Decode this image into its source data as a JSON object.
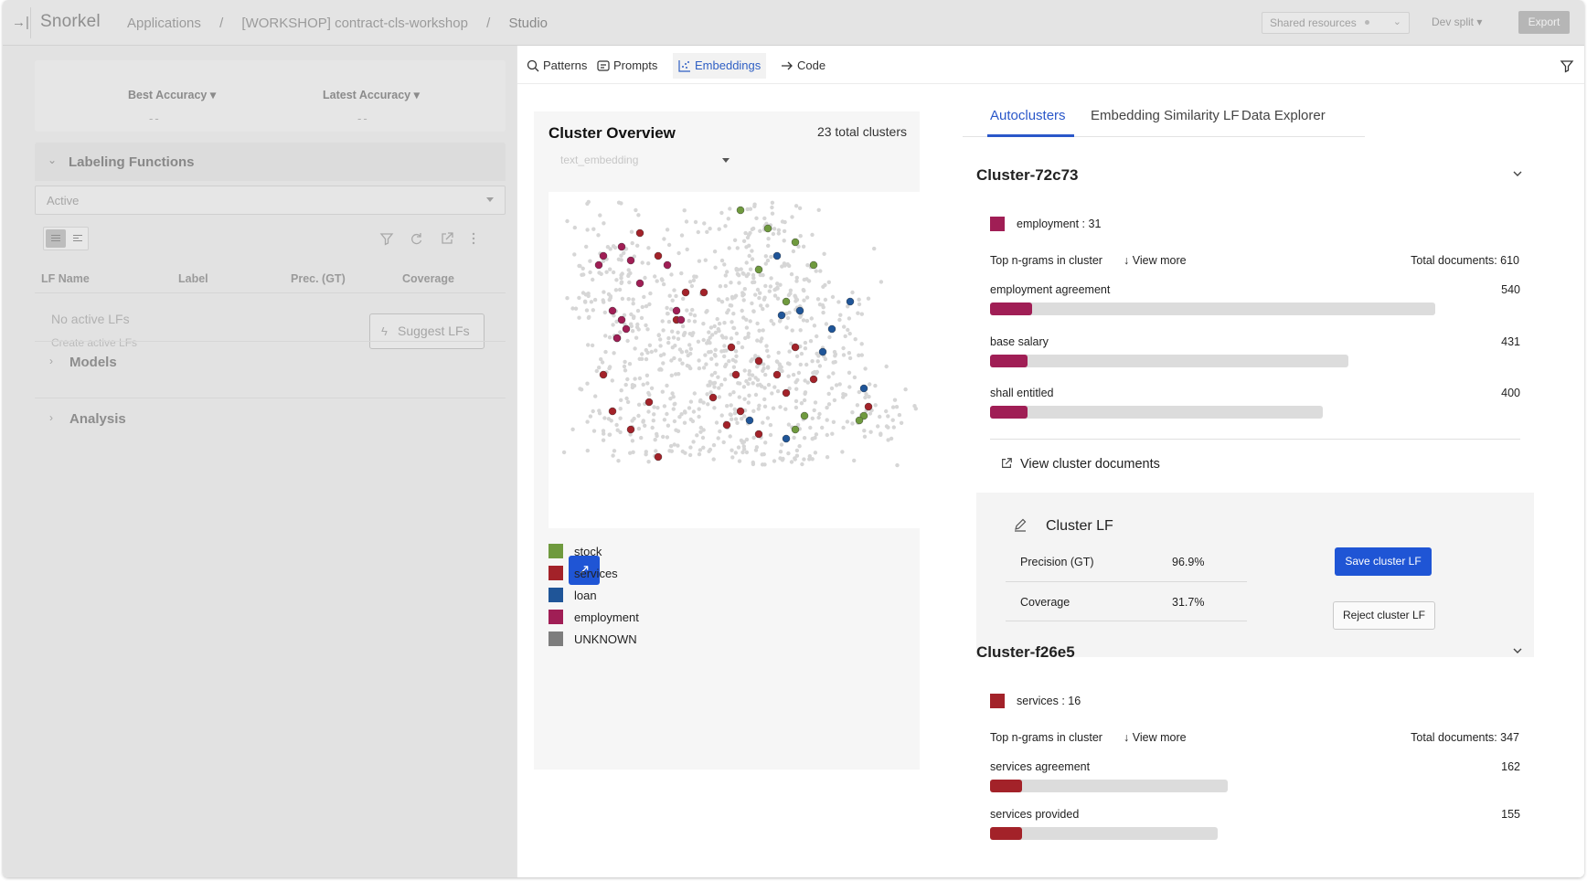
{
  "topbar": {
    "logo": "Snorkel",
    "breadcrumbs": [
      "Applications",
      "[WORKSHOP] contract-cls-workshop",
      "Studio"
    ],
    "separator": "/",
    "shared_resources": "Shared resources",
    "dev_split": "Dev split ▾",
    "export_label": "Export"
  },
  "left": {
    "best_accuracy_label": "Best Accuracy ▾",
    "best_accuracy_value": "--",
    "latest_accuracy_label": "Latest Accuracy ▾",
    "latest_accuracy_value": "--",
    "labeling_functions_title": "Labeling Functions",
    "active_filter": "Active",
    "columns": [
      "LF Name",
      "Label",
      "Prec. (GT)",
      "Coverage"
    ],
    "no_active": "No active LFs",
    "create_active": "Create active LFs",
    "suggest_label": "Suggest LFs",
    "models_title": "Models",
    "analysis_title": "Analysis"
  },
  "nav": {
    "tabs": [
      {
        "label": "Patterns",
        "icon": "search-icon"
      },
      {
        "label": "Prompts",
        "icon": "prompt-icon"
      },
      {
        "label": "Embeddings",
        "icon": "scatter-icon"
      },
      {
        "label": "Code",
        "icon": "arrow-right-icon"
      }
    ],
    "active_tab": "Embeddings"
  },
  "overview": {
    "title": "Cluster Overview",
    "total": "23 total clusters",
    "embedding_field": "text_embedding",
    "legend": [
      {
        "label": "stock",
        "color": "#6f9a3e"
      },
      {
        "label": "services",
        "color": "#a32229"
      },
      {
        "label": "loan",
        "color": "#1f5598"
      },
      {
        "label": "employment",
        "color": "#a01e55"
      },
      {
        "label": "UNKNOWN",
        "color": "#7d7d7d"
      }
    ]
  },
  "right_tabs": [
    "Autoclusters",
    "Embedding Similarity LF",
    "Data Explorer"
  ],
  "clusters": [
    {
      "name": "Cluster-72c73",
      "label": "employment : 31",
      "label_color": "#a01e55",
      "ngram_header": "Top n-grams in cluster",
      "view_more": "View more",
      "total_documents": "Total documents: 610",
      "ngrams": [
        {
          "text": "employment agreement",
          "count": "540",
          "fill_fraction": 0.08,
          "bar_fraction": 0.84
        },
        {
          "text": "base salary",
          "count": "431",
          "fill_fraction": 0.07,
          "bar_fraction": 0.675
        },
        {
          "text": "shall entitled",
          "count": "400",
          "fill_fraction": 0.07,
          "bar_fraction": 0.627
        }
      ],
      "view_docs": "View cluster documents",
      "cluster_lf": {
        "title": "Cluster LF",
        "precision_label": "Precision (GT)",
        "precision_value": "96.9%",
        "coverage_label": "Coverage",
        "coverage_value": "31.7%",
        "save_label": "Save cluster LF",
        "reject_label": "Reject cluster LF"
      }
    },
    {
      "name": "Cluster-f26e5",
      "label": "services : 16",
      "label_color": "#a32229",
      "ngram_header": "Top n-grams in cluster",
      "view_more": "View more",
      "total_documents": "Total documents: 347",
      "ngrams": [
        {
          "text": "services agreement",
          "count": "162",
          "fill_fraction": 0.06,
          "bar_fraction": 0.448
        },
        {
          "text": "services provided",
          "count": "155",
          "fill_fraction": 0.06,
          "bar_fraction": 0.43
        }
      ]
    }
  ],
  "colors": {
    "accent_blue": "#1f55d5",
    "tab_blue": "#2a57c9",
    "employment": "#a01e55",
    "services": "#a32229",
    "bar_track": "#dcdcdc"
  }
}
